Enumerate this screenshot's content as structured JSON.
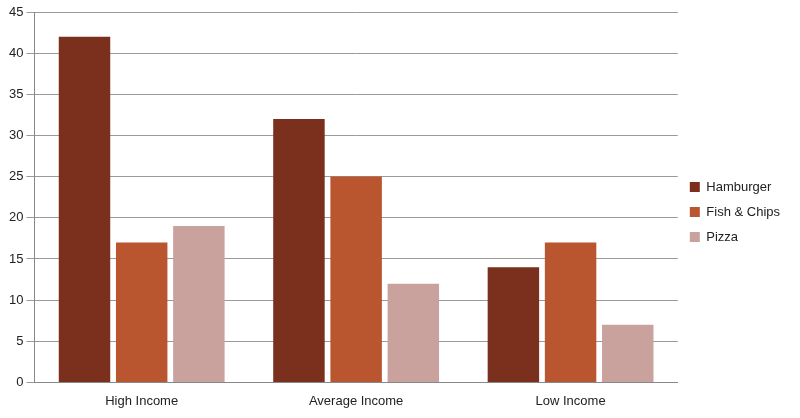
{
  "chart_data": {
    "type": "bar",
    "categories": [
      "High Income",
      "Average Income",
      "Low Income"
    ],
    "series": [
      {
        "name": "Hamburger",
        "color": "#7b2f1d",
        "values": [
          42,
          32,
          14
        ]
      },
      {
        "name": "Fish & Chips",
        "color": "#b9552f",
        "values": [
          17,
          25,
          17
        ]
      },
      {
        "name": "Pizza",
        "color": "#c9a29d",
        "values": [
          19,
          12,
          7
        ]
      }
    ],
    "ylim": [
      0,
      45
    ],
    "yticks": [
      0,
      5,
      10,
      15,
      20,
      25,
      30,
      35,
      40,
      45
    ],
    "grid": true,
    "legend": "right"
  }
}
